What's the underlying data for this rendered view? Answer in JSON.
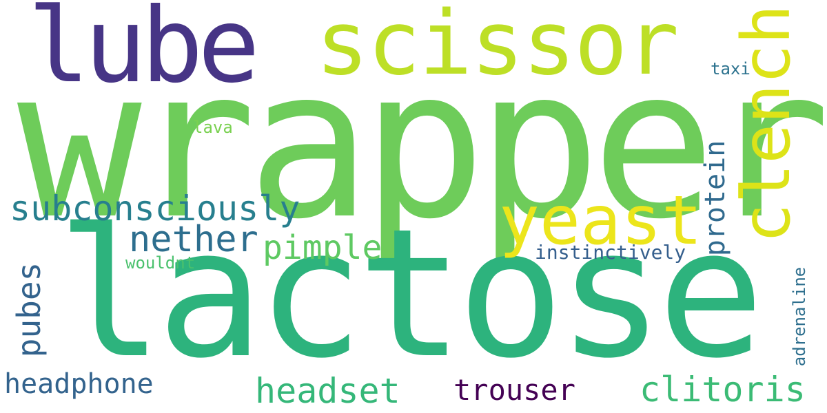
{
  "cloud": {
    "words": {
      "wrapper": {
        "text": "wrapper",
        "color": "#6ecc5a"
      },
      "lactose": {
        "text": "lactose",
        "color": "#2db37d"
      },
      "lube": {
        "text": "lube",
        "color": "#473586"
      },
      "scissor": {
        "text": "scissor",
        "color": "#bddf26"
      },
      "clench": {
        "text": "clench",
        "color": "#dde318"
      },
      "yeast": {
        "text": "yeast",
        "color": "#ece51b"
      },
      "subconsciously": {
        "text": "subconsciously",
        "color": "#277f8e"
      },
      "nether": {
        "text": "nether",
        "color": "#2d6e8e"
      },
      "pimple": {
        "text": "pimple",
        "color": "#5ec962"
      },
      "protein": {
        "text": "protein",
        "color": "#306a8e"
      },
      "pubes": {
        "text": "pubes",
        "color": "#33638d"
      },
      "headphone": {
        "text": "headphone",
        "color": "#33638d"
      },
      "headset": {
        "text": "headset",
        "color": "#35b779"
      },
      "trouser": {
        "text": "trouser",
        "color": "#440154"
      },
      "clitoris": {
        "text": "clitoris",
        "color": "#3bbb75"
      },
      "instinctively": {
        "text": "instinctively",
        "color": "#355f8d"
      },
      "adrenaline": {
        "text": "adrenaline",
        "color": "#2e6f8e"
      },
      "wouldnt": {
        "text": "wouldnt",
        "color": "#4ac16d"
      },
      "lava": {
        "text": "lava",
        "color": "#7ad151"
      },
      "taxi": {
        "text": "taxi",
        "color": "#2c728e"
      }
    }
  }
}
